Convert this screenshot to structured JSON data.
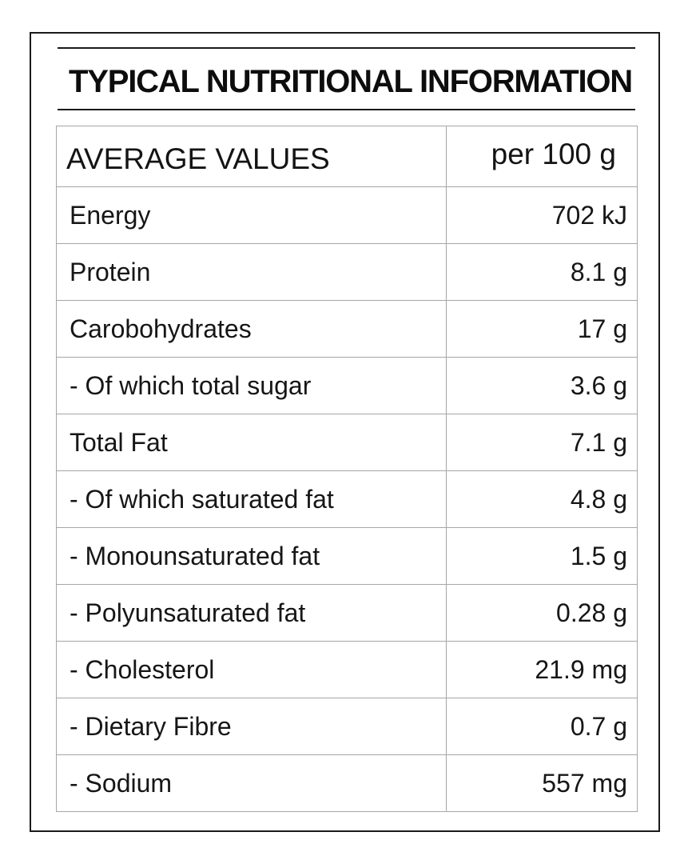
{
  "title": "TYPICAL NUTRITIONAL INFORMATION",
  "table": {
    "header": {
      "name": "AVERAGE VALUES",
      "value": "per 100 g"
    },
    "rows": [
      {
        "name": "Energy",
        "value": "702 kJ"
      },
      {
        "name": "Protein",
        "value": "8.1 g"
      },
      {
        "name": "Carobohydrates",
        "value": "17 g"
      },
      {
        "name": "- Of which total sugar",
        "value": "3.6 g"
      },
      {
        "name": "Total Fat",
        "value": "7.1 g"
      },
      {
        "name": "- Of which saturated fat",
        "value": "4.8 g"
      },
      {
        "name": "- Monounsaturated fat",
        "value": "1.5 g"
      },
      {
        "name": "- Polyunsaturated fat",
        "value": "0.28 g"
      },
      {
        "name": "- Cholesterol",
        "value": "21.9 mg"
      },
      {
        "name": "- Dietary Fibre",
        "value": "0.7 g"
      },
      {
        "name": "- Sodium",
        "value": "557 mg"
      }
    ]
  },
  "colors": {
    "text": "#111111",
    "frame": "#1a1a1a",
    "grid": "#a6a6a6",
    "background": "#ffffff"
  }
}
